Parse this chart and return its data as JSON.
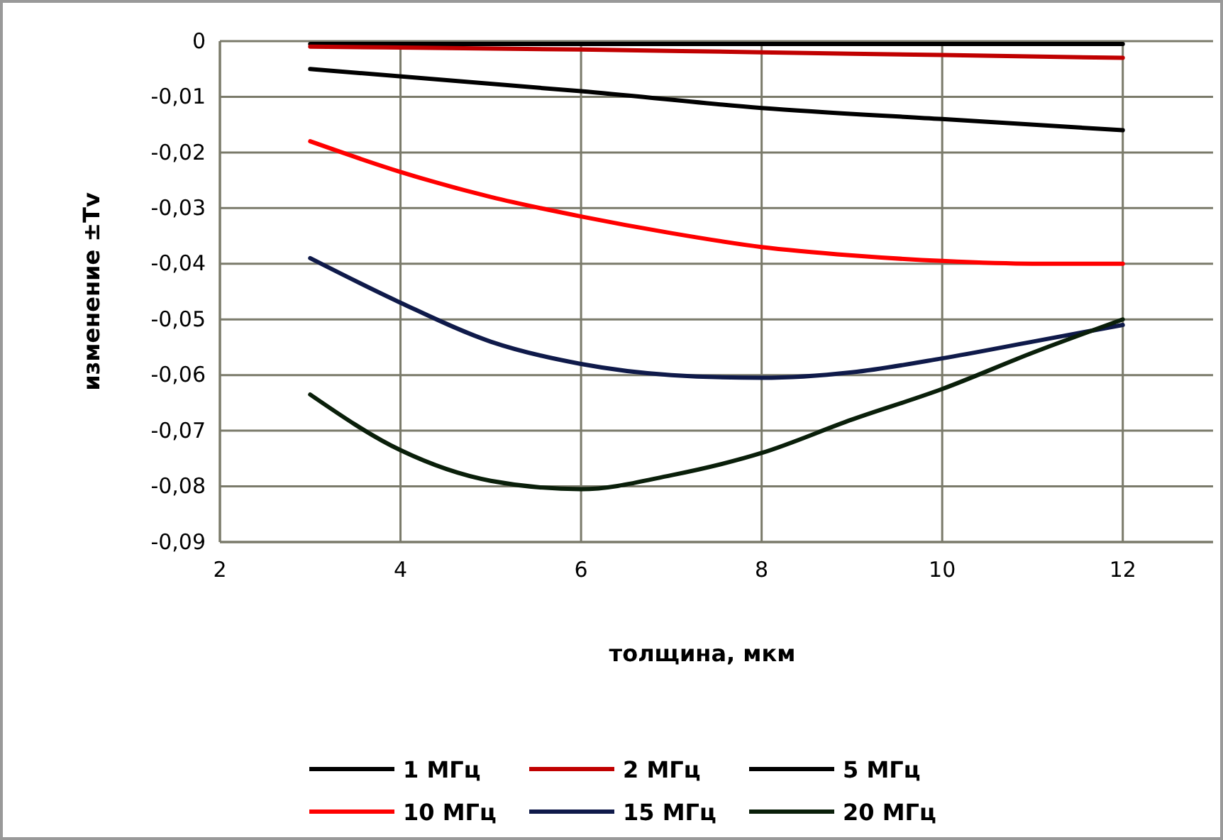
{
  "chart_data": {
    "type": "line",
    "xlabel": "толщина, мкм",
    "ylabel": "изменение ±Tv",
    "xlim": [
      2,
      13
    ],
    "xticks": [
      2,
      4,
      6,
      8,
      10,
      12
    ],
    "ylim": [
      -0.09,
      0
    ],
    "yticks": [
      {
        "value": -0.09,
        "label": "-0,09"
      },
      {
        "value": -0.08,
        "label": "-0,08"
      },
      {
        "value": -0.07,
        "label": "-0,07"
      },
      {
        "value": -0.06,
        "label": "-0,06"
      },
      {
        "value": -0.05,
        "label": "-0,05"
      },
      {
        "value": -0.04,
        "label": "-0,04"
      },
      {
        "value": -0.03,
        "label": "-0,03"
      },
      {
        "value": -0.02,
        "label": "-0,02"
      },
      {
        "value": -0.01,
        "label": "-0,01"
      },
      0
    ],
    "grid": true,
    "legend": "bottom",
    "marker": "none",
    "line_style": "solid",
    "series": [
      {
        "name": "1 МГц",
        "color": "#000000",
        "x": [
          3,
          12
        ],
        "values": [
          -0.0005,
          -0.0005
        ]
      },
      {
        "name": "2 МГц",
        "color": "#c00000",
        "x": [
          3,
          6,
          8,
          10,
          12
        ],
        "values": [
          -0.001,
          -0.0015,
          -0.002,
          -0.0025,
          -0.003
        ]
      },
      {
        "name": "5 МГц",
        "color": "#000000",
        "x": [
          3,
          6,
          8,
          10,
          12
        ],
        "values": [
          -0.005,
          -0.009,
          -0.012,
          -0.014,
          -0.016
        ]
      },
      {
        "name": "10 МГц",
        "color": "#ff0000",
        "x": [
          3,
          4,
          5,
          6,
          7,
          8,
          9,
          10,
          11,
          12
        ],
        "values": [
          -0.018,
          -0.0235,
          -0.028,
          -0.0315,
          -0.0345,
          -0.037,
          -0.0385,
          -0.0395,
          -0.04,
          -0.04
        ]
      },
      {
        "name": "15 МГц",
        "color": "#0f1a4a",
        "x": [
          3,
          4,
          5,
          6,
          7,
          8,
          9,
          10,
          11,
          12
        ],
        "values": [
          -0.039,
          -0.047,
          -0.054,
          -0.058,
          -0.06,
          -0.0605,
          -0.0595,
          -0.057,
          -0.054,
          -0.051
        ]
      },
      {
        "name": "20 МГц",
        "color": "#0a1f0a",
        "x": [
          3,
          4,
          5,
          6,
          7,
          8,
          9,
          10,
          11,
          12
        ],
        "values": [
          -0.0635,
          -0.0735,
          -0.079,
          -0.0805,
          -0.078,
          -0.074,
          -0.068,
          -0.0625,
          -0.056,
          -0.05
        ]
      }
    ]
  }
}
